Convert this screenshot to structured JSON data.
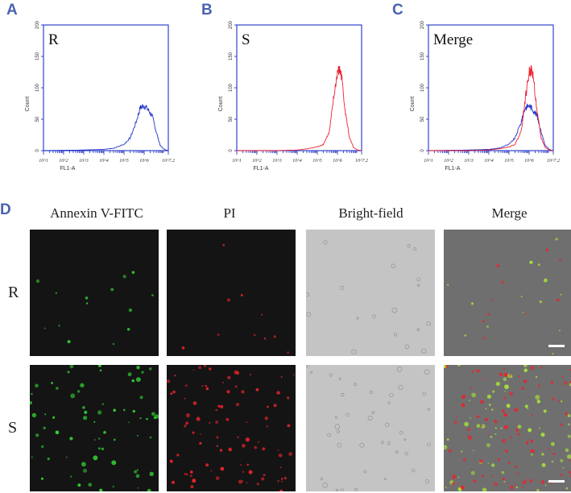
{
  "panel_letters": {
    "a": "A",
    "b": "B",
    "c": "C",
    "d": "D"
  },
  "histograms": [
    {
      "label": "R"
    },
    {
      "label": "S"
    },
    {
      "label": "Merge"
    }
  ],
  "axes": {
    "ylabel": "Count",
    "xlabel": "FL1-A",
    "yticks": [
      "0",
      "50",
      "100",
      "150",
      "200"
    ],
    "xticks": [
      "10^1",
      "10^2",
      "10^3",
      "10^4",
      "10^5",
      "10^6",
      "10^7.2"
    ]
  },
  "microscopy": {
    "columns": [
      "Annexin V-FITC",
      "PI",
      "Bright-field",
      "Merge"
    ],
    "rows": [
      "R",
      "S"
    ]
  },
  "colors": {
    "blue": "#2233cc",
    "red": "#ee2233",
    "frame": "#3344cc",
    "panel_letter": "#4a63b0"
  },
  "chart_data": [
    {
      "type": "line",
      "title": "R",
      "xlabel": "FL1-A",
      "ylabel": "Count",
      "xscale": "log",
      "xlim": [
        1,
        7.2
      ],
      "ylim": [
        0,
        200
      ],
      "series": [
        {
          "color": "#2233cc",
          "x": [
            1,
            3,
            4,
            4.5,
            5,
            5.3,
            5.6,
            5.8,
            6.0,
            6.2,
            6.4,
            6.6,
            6.8,
            7.0,
            7.2
          ],
          "y": [
            0,
            1,
            2,
            4,
            10,
            20,
            45,
            68,
            72,
            65,
            55,
            30,
            8,
            2,
            0
          ]
        }
      ]
    },
    {
      "type": "line",
      "title": "S",
      "xlabel": "FL1-A",
      "ylabel": "Count",
      "xscale": "log",
      "xlim": [
        1,
        7.2
      ],
      "ylim": [
        0,
        200
      ],
      "series": [
        {
          "color": "#ee2233",
          "x": [
            1,
            3,
            4,
            4.5,
            5,
            5.3,
            5.6,
            5.8,
            6.0,
            6.1,
            6.2,
            6.4,
            6.6,
            6.8,
            7.0,
            7.2
          ],
          "y": [
            0,
            0,
            1,
            3,
            6,
            10,
            30,
            80,
            125,
            128,
            120,
            60,
            20,
            5,
            1,
            0
          ]
        }
      ]
    },
    {
      "type": "line",
      "title": "Merge",
      "xlabel": "FL1-A",
      "ylabel": "Count",
      "xscale": "log",
      "xlim": [
        1,
        7.2
      ],
      "ylim": [
        0,
        200
      ],
      "series": [
        {
          "color": "#2233cc",
          "x": [
            1,
            3,
            4,
            4.5,
            5,
            5.3,
            5.6,
            5.8,
            6.0,
            6.2,
            6.4,
            6.6,
            6.8,
            7.0,
            7.2
          ],
          "y": [
            0,
            1,
            2,
            4,
            10,
            20,
            45,
            68,
            72,
            65,
            55,
            30,
            8,
            2,
            0
          ]
        },
        {
          "color": "#ee2233",
          "x": [
            1,
            3,
            4,
            4.5,
            5,
            5.3,
            5.6,
            5.8,
            6.0,
            6.1,
            6.2,
            6.4,
            6.6,
            6.8,
            7.0,
            7.2
          ],
          "y": [
            0,
            0,
            1,
            3,
            6,
            10,
            30,
            80,
            125,
            128,
            120,
            60,
            20,
            5,
            1,
            0
          ]
        }
      ]
    }
  ]
}
